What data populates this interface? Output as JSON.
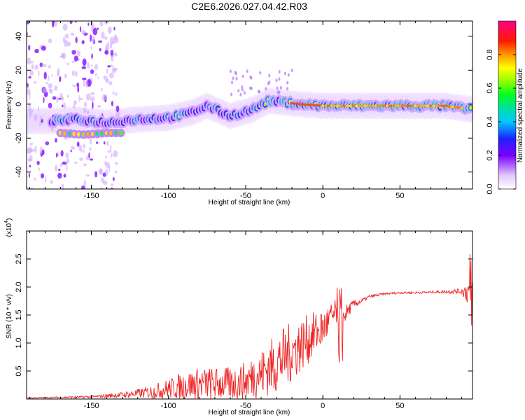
{
  "title": "C2E6.2026.027.04.42.R03",
  "chart_data": [
    {
      "type": "heatmap",
      "name": "spectrogram",
      "xlabel": "Height of straight line (km)",
      "ylabel": "Frequency (Hz)",
      "xlim": [
        -192,
        97
      ],
      "ylim": [
        -50,
        49
      ],
      "xticks": [
        -150,
        -100,
        -50,
        0,
        50
      ],
      "yticks": [
        -40,
        -20,
        0,
        20,
        40
      ],
      "colorbar": {
        "label": "Normalized spectral amplitude",
        "range": [
          0,
          1
        ],
        "ticks": [
          "0.0",
          "0.2",
          "0.4",
          "0.6",
          "0.8"
        ],
        "tick_values": [
          0.0,
          0.2,
          0.4,
          0.6,
          0.8
        ]
      },
      "ridge": {
        "name": "dominant frequency",
        "x": [
          -175,
          -160,
          -140,
          -120,
          -100,
          -85,
          -75,
          -60,
          -45,
          -35,
          -25,
          -15,
          0,
          10,
          20,
          40,
          60,
          80,
          95
        ],
        "y": [
          -10,
          -9,
          -11,
          -9,
          -8,
          -5,
          -1,
          -7,
          -3,
          2,
          1,
          0,
          -1,
          -1,
          -1,
          -1,
          -1,
          -1,
          -3
        ]
      },
      "branch": {
        "name": "lower branch",
        "x": [
          -170,
          -155,
          -140,
          -130
        ],
        "y": [
          -17,
          -18,
          -17,
          -17
        ]
      }
    },
    {
      "type": "line",
      "name": "snr",
      "xlabel": "Height of straight line (km)",
      "ylabel": "SNR (10 * v/v)",
      "scale_label": "(x10",
      "scale_exponent": "4",
      "xlim": [
        -192,
        97
      ],
      "ylim": [
        0,
        3.0
      ],
      "xticks": [
        -150,
        -100,
        -50,
        0,
        50
      ],
      "yticks": [
        "0.5",
        "1.0",
        "1.5",
        "2.0",
        "2.5"
      ],
      "ytick_values": [
        0.5,
        1.0,
        1.5,
        2.0,
        2.5
      ],
      "color": "#ee2222",
      "envelope_x": [
        -192,
        -150,
        -130,
        -115,
        -100,
        -90,
        -80,
        -70,
        -60,
        -50,
        -45,
        -40,
        -35,
        -30,
        -25,
        -20,
        -15,
        -10,
        -5,
        0,
        5,
        10,
        12,
        15,
        20,
        25,
        30,
        40,
        50,
        60,
        70,
        80,
        90,
        95,
        97
      ],
      "envelope_y": [
        0.02,
        0.04,
        0.08,
        0.12,
        0.2,
        0.26,
        0.3,
        0.3,
        0.3,
        0.35,
        0.45,
        0.5,
        0.6,
        0.7,
        0.8,
        0.9,
        1.0,
        1.1,
        1.2,
        1.3,
        1.45,
        1.6,
        1.4,
        1.55,
        1.7,
        1.75,
        1.83,
        1.88,
        1.9,
        1.9,
        1.91,
        1.92,
        1.93,
        1.95,
        1.6
      ],
      "noise_y": [
        0.01,
        0.02,
        0.05,
        0.1,
        0.18,
        0.25,
        0.3,
        0.3,
        0.3,
        0.35,
        0.4,
        0.45,
        0.5,
        0.55,
        0.55,
        0.55,
        0.5,
        0.45,
        0.4,
        0.35,
        0.3,
        0.25,
        0.2,
        0.15,
        0.08,
        0.04,
        0.03,
        0.02,
        0.02,
        0.02,
        0.02,
        0.03,
        0.05,
        0.3,
        0.5
      ]
    }
  ]
}
